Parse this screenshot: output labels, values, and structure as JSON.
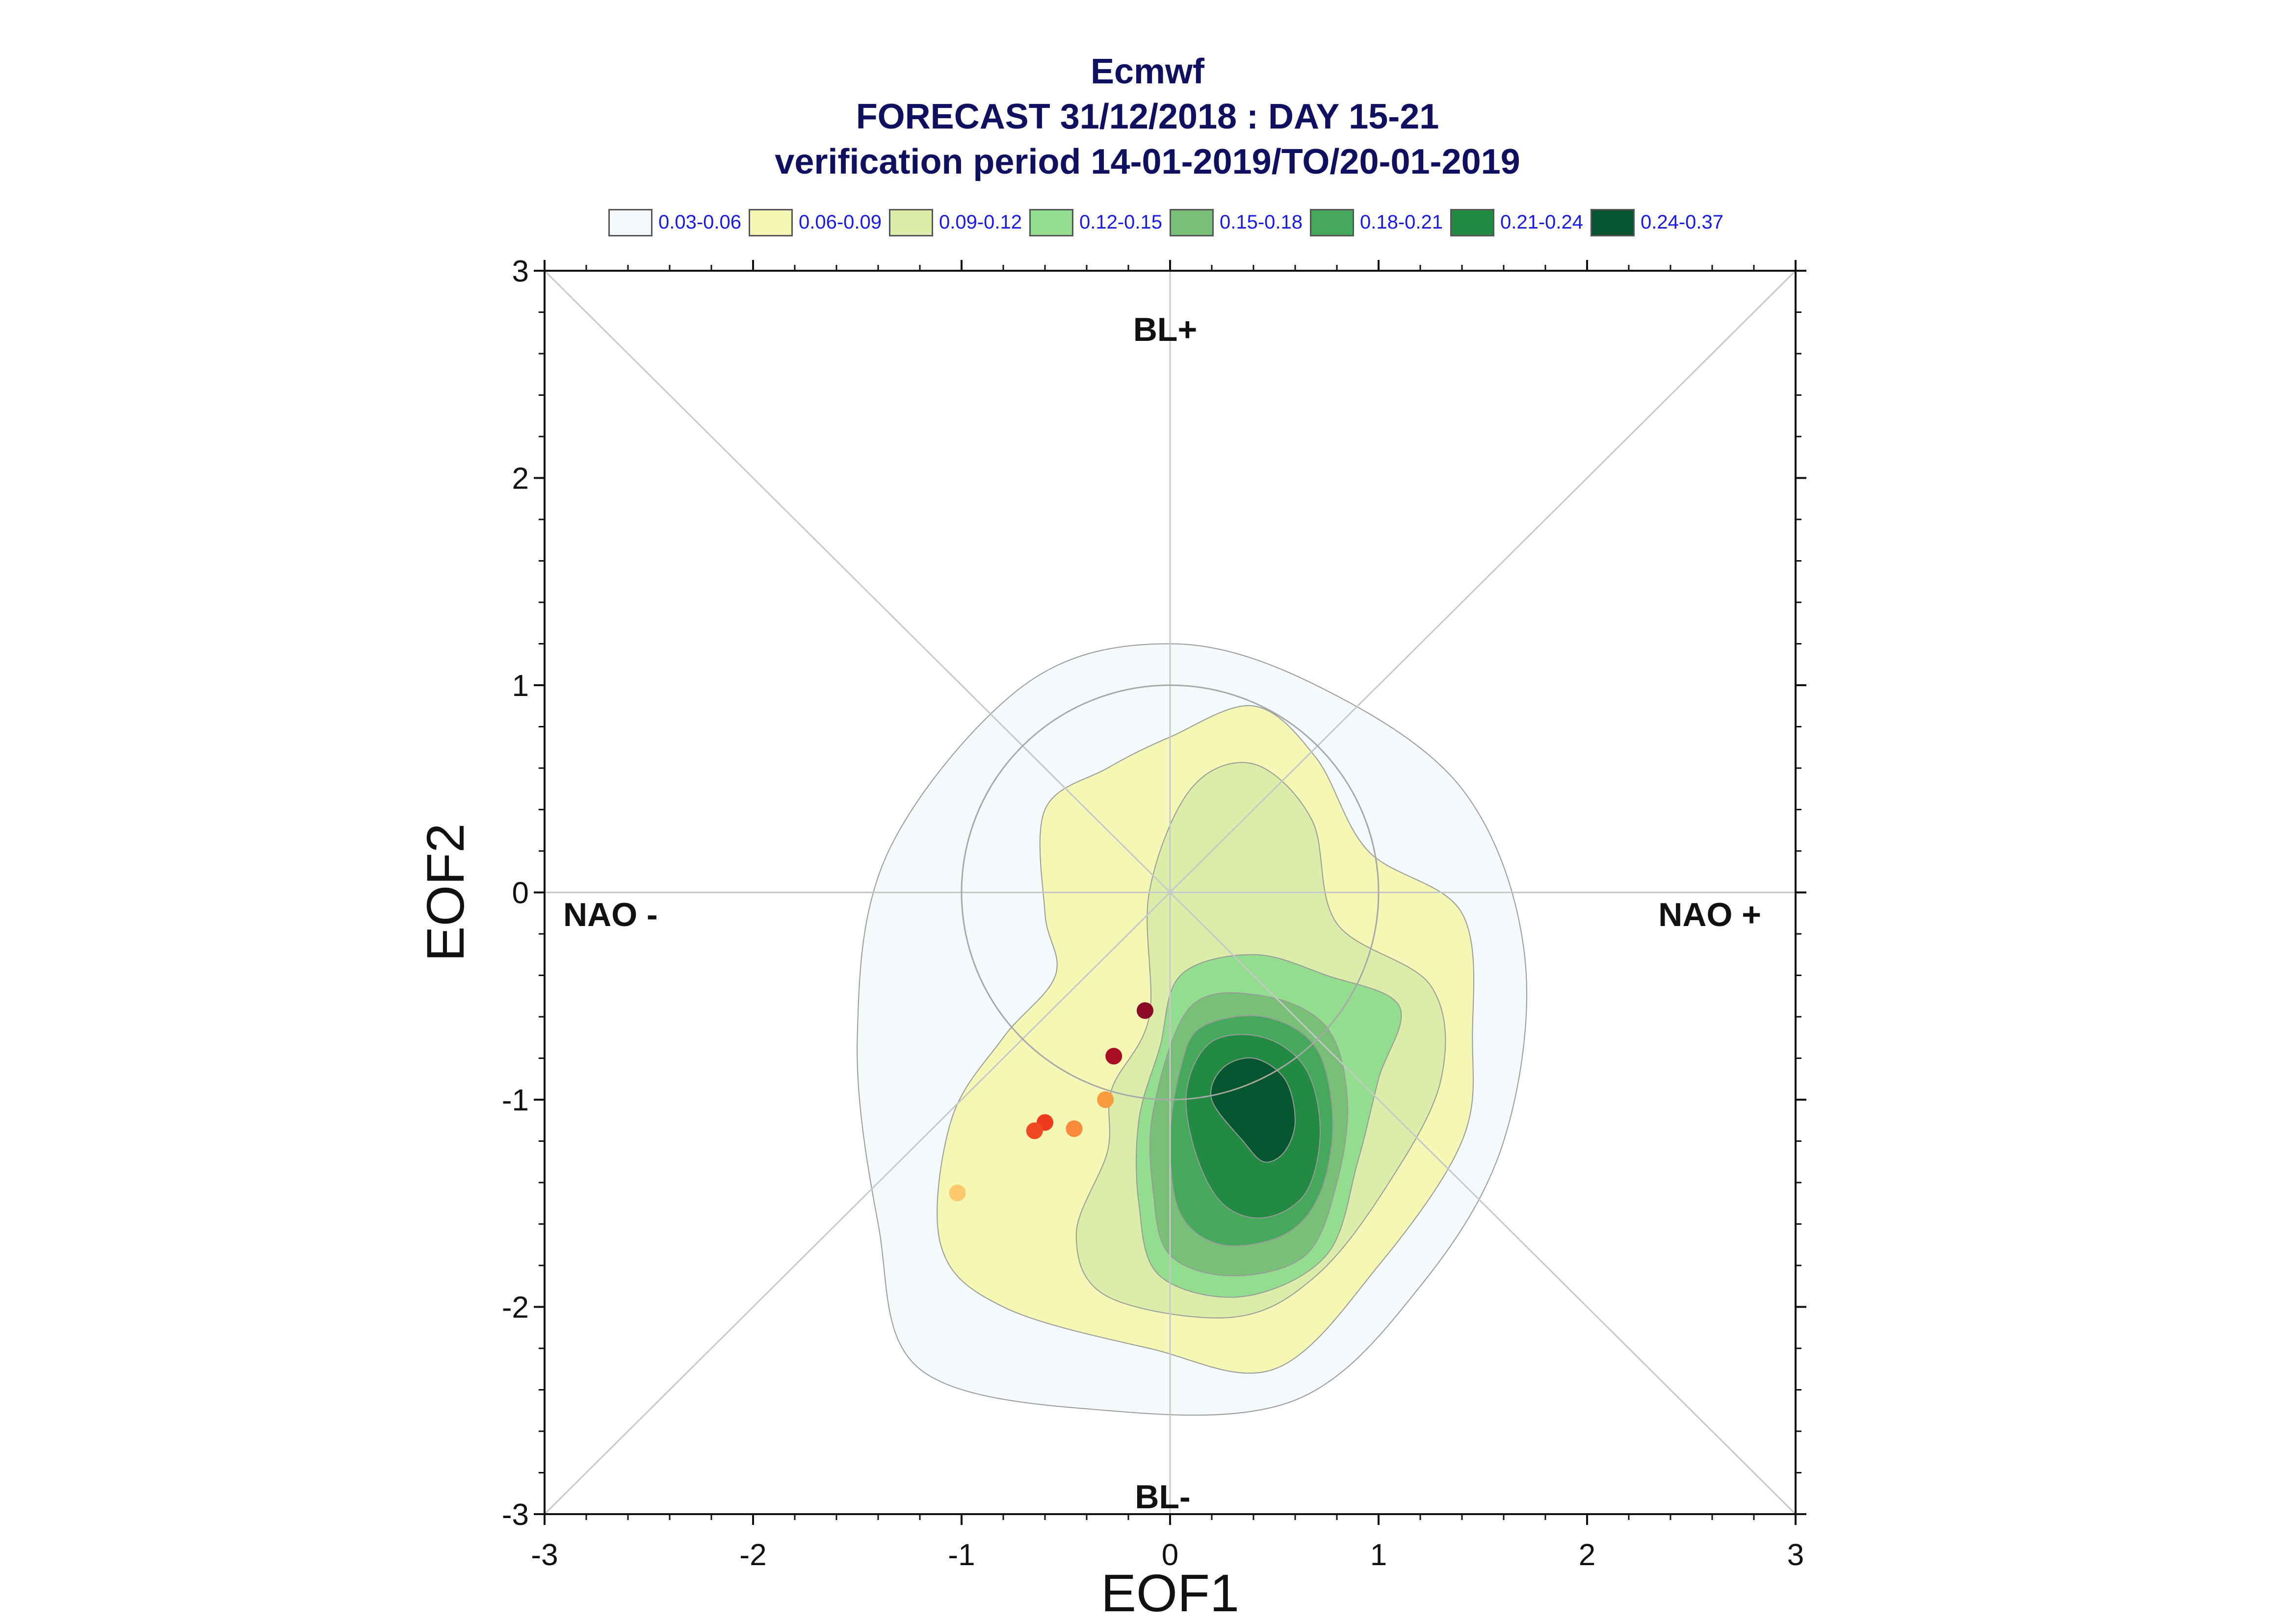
{
  "title": {
    "line1": "Ecmwf",
    "line2": "FORECAST 31/12/2018 : DAY 15-21",
    "line3": "verification period 14-01-2019/TO/20-01-2019"
  },
  "legend": [
    {
      "label": "0.03-0.06",
      "color": "#f4f9fc"
    },
    {
      "label": "0.06-0.09",
      "color": "#f5f8b4"
    },
    {
      "label": "0.09-0.12",
      "color": "#dcedaa"
    },
    {
      "label": "0.12-0.15",
      "color": "#92dd8e"
    },
    {
      "label": "0.15-0.18",
      "color": "#78c077"
    },
    {
      "label": "0.18-0.21",
      "color": "#46a85a"
    },
    {
      "label": "0.21-0.24",
      "color": "#228a42"
    },
    {
      "label": "0.24-0.37",
      "color": "#04562e"
    }
  ],
  "chart_data": {
    "type": "scatter",
    "xlabel": "EOF1",
    "ylabel": "EOF2",
    "xlim": [
      -3,
      3
    ],
    "ylim": [
      -3,
      3
    ],
    "xticks": [
      "-3",
      "-2",
      "-1",
      "0",
      "1",
      "2",
      "3"
    ],
    "yticks": [
      "-3",
      "-2",
      "-1",
      "0",
      "1",
      "2",
      "3"
    ],
    "regime_labels": {
      "top": "BL+",
      "bottom": "BL-",
      "left": "NAO -",
      "right": "NAO +"
    },
    "reference_circle_radius": 1,
    "density_contours": [
      {
        "level": "0.03-0.06",
        "color": "#f4f9fc",
        "points": [
          [
            -0.7,
            1.0
          ],
          [
            0.0,
            1.2
          ],
          [
            0.7,
            1.0
          ],
          [
            1.4,
            0.5
          ],
          [
            1.7,
            -0.3
          ],
          [
            1.6,
            -1.2
          ],
          [
            1.2,
            -1.9
          ],
          [
            0.6,
            -2.45
          ],
          [
            -0.3,
            -2.5
          ],
          [
            -1.2,
            -2.3
          ],
          [
            -1.4,
            -1.6
          ],
          [
            -1.5,
            -0.7
          ],
          [
            -1.35,
            0.2
          ]
        ]
      },
      {
        "level": "0.06-0.09",
        "color": "#f5f8b4",
        "points": [
          [
            -0.6,
            0.4
          ],
          [
            -0.3,
            0.6
          ],
          [
            0.0,
            0.75
          ],
          [
            0.4,
            0.9
          ],
          [
            0.7,
            0.65
          ],
          [
            0.95,
            0.2
          ],
          [
            1.4,
            -0.1
          ],
          [
            1.45,
            -0.7
          ],
          [
            1.4,
            -1.2
          ],
          [
            1.0,
            -1.8
          ],
          [
            0.5,
            -2.3
          ],
          [
            -0.1,
            -2.2
          ],
          [
            -0.8,
            -2.0
          ],
          [
            -1.1,
            -1.7
          ],
          [
            -1.05,
            -1.1
          ],
          [
            -0.8,
            -0.7
          ],
          [
            -0.55,
            -0.4
          ],
          [
            -0.6,
            -0.1
          ]
        ]
      },
      {
        "level": "0.09-0.12",
        "color": "#dcedaa",
        "points": [
          [
            -0.1,
            0.0
          ],
          [
            0.1,
            0.5
          ],
          [
            0.4,
            0.62
          ],
          [
            0.68,
            0.35
          ],
          [
            0.8,
            -0.15
          ],
          [
            1.25,
            -0.45
          ],
          [
            1.3,
            -0.9
          ],
          [
            1.05,
            -1.4
          ],
          [
            0.7,
            -1.85
          ],
          [
            0.3,
            -2.05
          ],
          [
            -0.3,
            -1.95
          ],
          [
            -0.45,
            -1.65
          ],
          [
            -0.3,
            -1.25
          ],
          [
            -0.28,
            -0.95
          ],
          [
            -0.1,
            -0.6
          ]
        ]
      },
      {
        "level": "0.12-0.15",
        "color": "#92dd8e",
        "points": [
          [
            0.05,
            -0.4
          ],
          [
            0.4,
            -0.3
          ],
          [
            0.75,
            -0.4
          ],
          [
            1.1,
            -0.55
          ],
          [
            1.0,
            -0.9
          ],
          [
            0.9,
            -1.3
          ],
          [
            0.75,
            -1.75
          ],
          [
            0.35,
            -1.95
          ],
          [
            -0.05,
            -1.85
          ],
          [
            -0.15,
            -1.5
          ],
          [
            -0.15,
            -1.1
          ],
          [
            -0.05,
            -0.75
          ]
        ]
      },
      {
        "level": "0.15-0.18",
        "color": "#78c077",
        "points": [
          [
            0.1,
            -0.55
          ],
          [
            0.45,
            -0.5
          ],
          [
            0.75,
            -0.65
          ],
          [
            0.85,
            -1.0
          ],
          [
            0.8,
            -1.4
          ],
          [
            0.65,
            -1.75
          ],
          [
            0.3,
            -1.85
          ],
          [
            0.0,
            -1.75
          ],
          [
            -0.08,
            -1.45
          ],
          [
            -0.08,
            -1.05
          ]
        ]
      },
      {
        "level": "0.18-0.21",
        "color": "#46a85a",
        "points": [
          [
            0.15,
            -0.65
          ],
          [
            0.45,
            -0.6
          ],
          [
            0.7,
            -0.75
          ],
          [
            0.78,
            -1.1
          ],
          [
            0.72,
            -1.45
          ],
          [
            0.55,
            -1.65
          ],
          [
            0.25,
            -1.7
          ],
          [
            0.05,
            -1.55
          ],
          [
            0.0,
            -1.2
          ],
          [
            0.05,
            -0.85
          ]
        ]
      },
      {
        "level": "0.21-0.24",
        "color": "#228a42",
        "points": [
          [
            0.2,
            -0.72
          ],
          [
            0.45,
            -0.7
          ],
          [
            0.65,
            -0.85
          ],
          [
            0.72,
            -1.15
          ],
          [
            0.65,
            -1.45
          ],
          [
            0.45,
            -1.57
          ],
          [
            0.25,
            -1.5
          ],
          [
            0.12,
            -1.25
          ],
          [
            0.08,
            -0.95
          ]
        ]
      },
      {
        "level": "0.24-0.37",
        "color": "#04562e",
        "points": [
          [
            0.25,
            -0.85
          ],
          [
            0.4,
            -0.8
          ],
          [
            0.55,
            -0.9
          ],
          [
            0.6,
            -1.1
          ],
          [
            0.55,
            -1.25
          ],
          [
            0.45,
            -1.3
          ],
          [
            0.35,
            -1.2
          ],
          [
            0.2,
            -1.0
          ]
        ]
      }
    ],
    "points": [
      {
        "x": -0.12,
        "y": -0.57,
        "color": "#8b0a25"
      },
      {
        "x": -0.27,
        "y": -0.79,
        "color": "#a80f25"
      },
      {
        "x": -0.31,
        "y": -1.0,
        "color": "#fb9b3f"
      },
      {
        "x": -0.6,
        "y": -1.11,
        "color": "#f03a20"
      },
      {
        "x": -0.65,
        "y": -1.15,
        "color": "#f04a22"
      },
      {
        "x": -0.46,
        "y": -1.14,
        "color": "#fb8a3a"
      },
      {
        "x": -1.02,
        "y": -1.45,
        "color": "#fdc86b"
      }
    ]
  }
}
